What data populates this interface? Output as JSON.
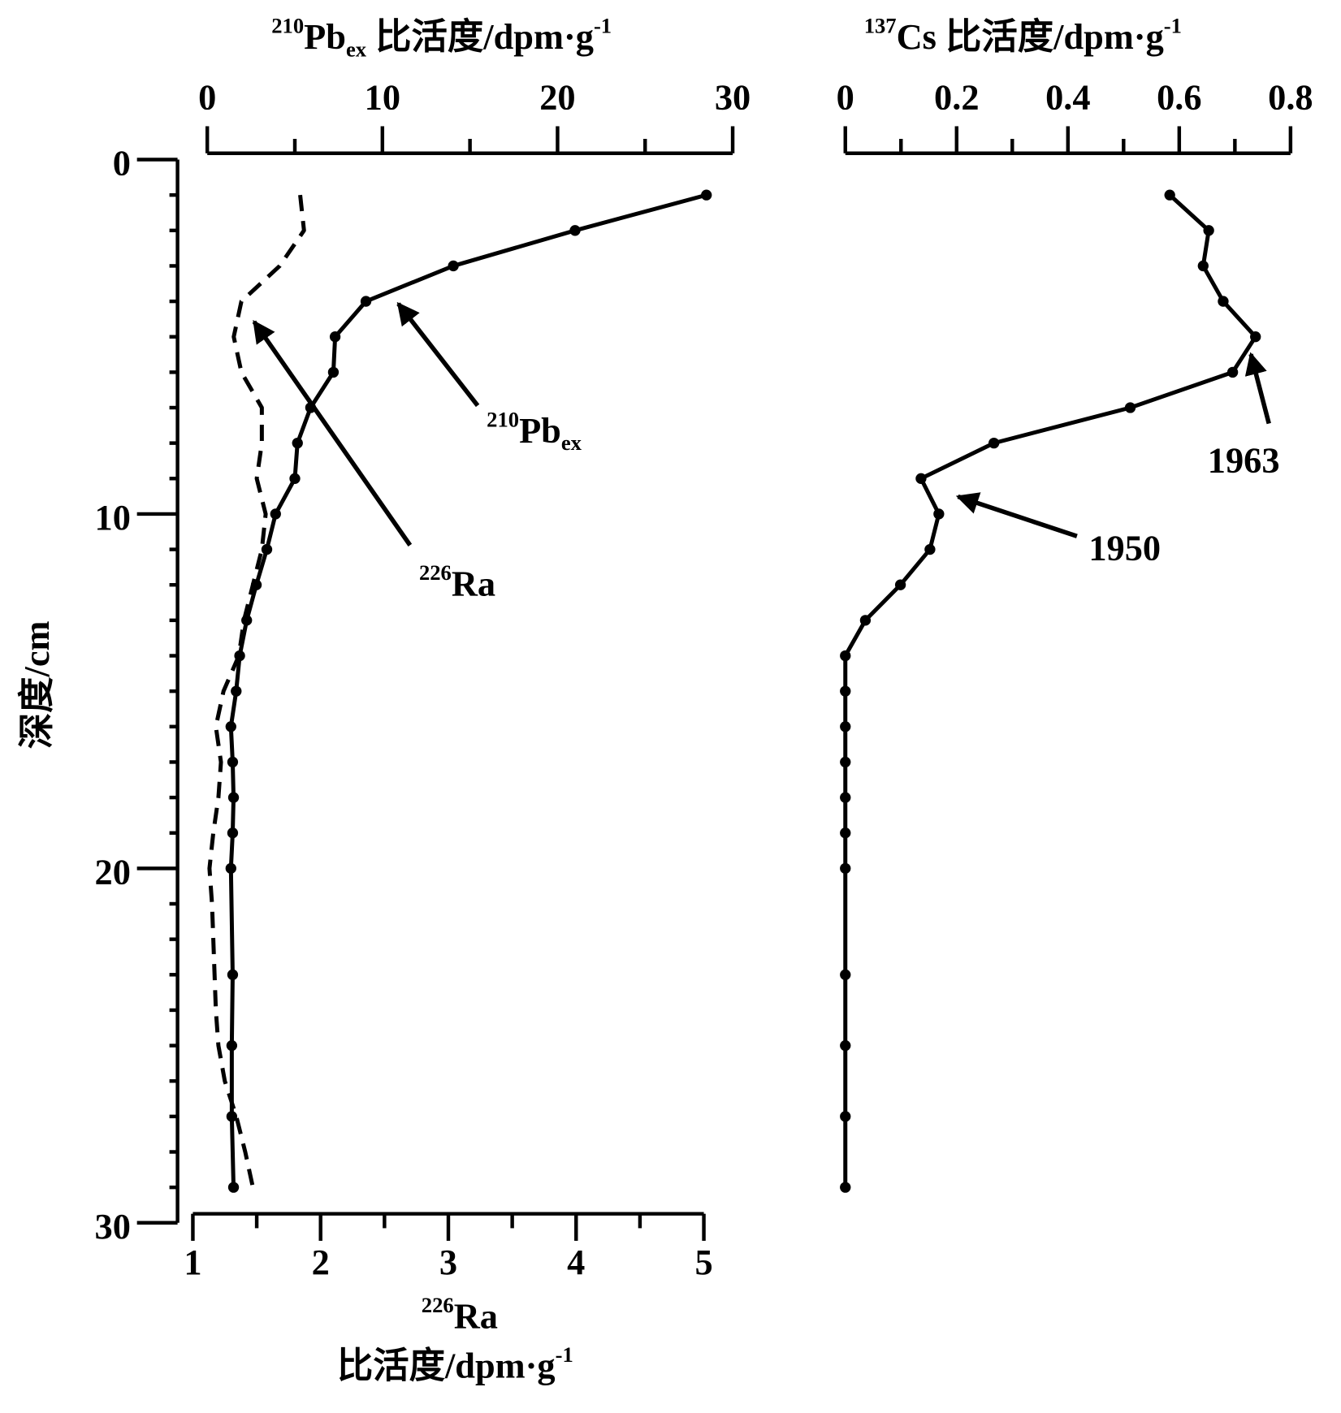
{
  "chart_data": [
    {
      "type": "line",
      "x_label": [
        {
          "text": "210",
          "pos": "sup"
        },
        {
          "text": "Pb"
        },
        {
          "text": "ex",
          "pos": "sub"
        },
        {
          "text": " 比活度/dpm·g"
        },
        {
          "text": "-1",
          "pos": "sup"
        }
      ],
      "xlim": [
        0,
        30
      ],
      "xticks": [
        0,
        10,
        20,
        30
      ],
      "xminorticks": [
        5,
        15,
        25
      ],
      "x2_label": [
        {
          "text": "226",
          "pos": "sup"
        },
        {
          "text": "Ra"
        }
      ],
      "x2_label_2": [
        {
          "text": "比活度/dpm·g"
        },
        {
          "text": "-1",
          "pos": "sup"
        }
      ],
      "x2lim": [
        1,
        5
      ],
      "x2ticks": [
        1,
        2,
        3,
        4,
        5
      ],
      "x2minorticks": [
        1.5,
        2.5,
        3.5,
        4.5
      ],
      "y_label": "深度/cm",
      "ylim": [
        0,
        30
      ],
      "yticks": [
        0,
        10,
        20,
        30
      ],
      "yminorticks": [
        1,
        2,
        3,
        4,
        5,
        6,
        7,
        8,
        9,
        11,
        12,
        13,
        14,
        15,
        16,
        17,
        18,
        19,
        21,
        22,
        23,
        24,
        25,
        26,
        27,
        28,
        29
      ],
      "series": [
        {
          "name": [
            {
              "text": "210",
              "pos": "sup"
            },
            {
              "text": "Pb"
            },
            {
              "text": "ex",
              "pos": "sub"
            }
          ],
          "color": "#000000",
          "dash": false,
          "markers": true,
          "axis": "x",
          "depth": [
            1,
            2,
            3,
            4,
            5,
            6,
            7,
            8,
            9,
            10,
            11,
            12,
            13,
            14,
            15,
            16,
            17,
            18,
            19,
            20,
            23,
            25,
            27,
            29
          ],
          "values": [
            28.5,
            21.0,
            14.05,
            9.06,
            7.3,
            7.2,
            5.9,
            5.15,
            5.0,
            3.9,
            3.4,
            2.8,
            2.25,
            1.85,
            1.65,
            1.35,
            1.45,
            1.5,
            1.45,
            1.35,
            1.45,
            1.4,
            1.4,
            1.5
          ]
        },
        {
          "name": [
            {
              "text": "226",
              "pos": "sup"
            },
            {
              "text": "Ra"
            }
          ],
          "color": "#000000",
          "dash": true,
          "markers": false,
          "axis": "x2",
          "depth": [
            1,
            2,
            3,
            4,
            5,
            6,
            7,
            8,
            9,
            10,
            11,
            12,
            13,
            14,
            15,
            16,
            17,
            18,
            19,
            20,
            21,
            22,
            23,
            24,
            25,
            26,
            27,
            28,
            29
          ],
          "values": [
            1.84,
            1.87,
            1.68,
            1.38,
            1.32,
            1.38,
            1.54,
            1.54,
            1.5,
            1.57,
            1.54,
            1.47,
            1.4,
            1.36,
            1.24,
            1.18,
            1.22,
            1.2,
            1.16,
            1.13,
            1.15,
            1.16,
            1.17,
            1.18,
            1.2,
            1.25,
            1.34,
            1.41,
            1.47
          ]
        }
      ]
    },
    {
      "type": "line",
      "x_label": [
        {
          "text": "137",
          "pos": "sup"
        },
        {
          "text": "Cs 比活度/dpm·g"
        },
        {
          "text": "-1",
          "pos": "sup"
        }
      ],
      "xlim": [
        0,
        0.8
      ],
      "xticks": [
        0,
        0.2,
        0.4,
        0.6,
        0.8
      ],
      "xminorticks": [
        0.1,
        0.3,
        0.5,
        0.7
      ],
      "ylim": [
        0,
        30
      ],
      "series": [
        {
          "color": "#000000",
          "dash": false,
          "markers": true,
          "axis": "x",
          "depth": [
            1,
            2,
            3,
            4,
            5,
            6,
            7,
            8,
            9,
            10,
            11,
            12,
            13,
            14,
            15,
            16,
            17,
            18,
            19,
            20,
            23,
            25,
            27,
            29
          ],
          "values": [
            0.583,
            0.653,
            0.643,
            0.679,
            0.737,
            0.696,
            0.512,
            0.267,
            0.136,
            0.168,
            0.152,
            0.099,
            0.036,
            0,
            0,
            0,
            0,
            0,
            0,
            0,
            0,
            0,
            0,
            0
          ]
        }
      ],
      "annotations": [
        {
          "text": "1963"
        },
        {
          "text": "1950"
        }
      ]
    }
  ]
}
